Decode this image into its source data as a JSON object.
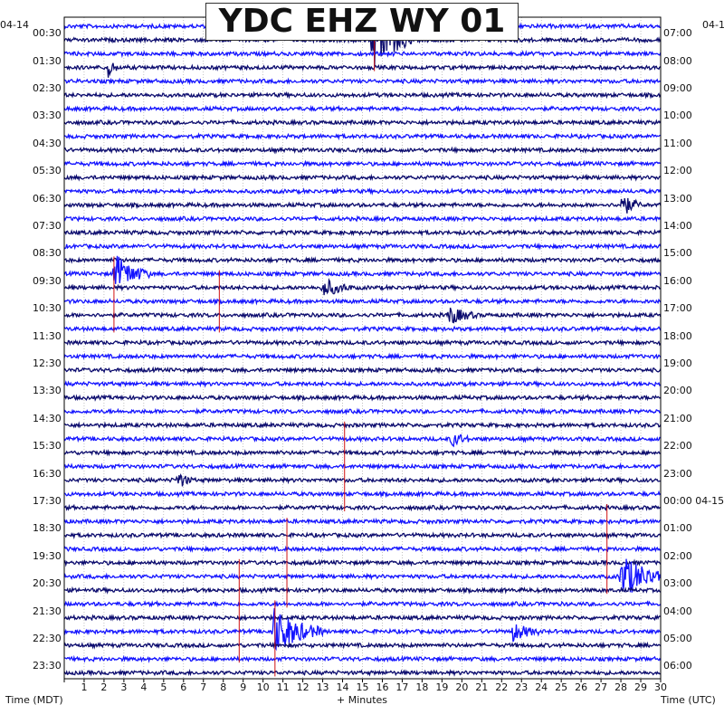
{
  "title": "YDC EHZ WY 01",
  "left_date": "04-14",
  "right_date": "04-1",
  "chart_data": {
    "type": "helicorder",
    "title": "YDC EHZ WY 01",
    "xlabel": "+ Minutes",
    "left_axis_label": "Time (MDT)",
    "right_axis_label": "Time (UTC)",
    "xlim": [
      0,
      30
    ],
    "x_ticks": [
      "1",
      "2",
      "3",
      "4",
      "5",
      "6",
      "7",
      "8",
      "9",
      "10",
      "11",
      "12",
      "13",
      "14",
      "15",
      "16",
      "17",
      "18",
      "19",
      "20",
      "21",
      "22",
      "23",
      "24",
      "25",
      "26",
      "27",
      "28",
      "29",
      "30"
    ],
    "left_time_labels": [
      "00:30",
      "01:30",
      "02:30",
      "03:30",
      "04:30",
      "05:30",
      "06:30",
      "07:30",
      "08:30",
      "09:30",
      "10:30",
      "11:30",
      "12:30",
      "13:30",
      "14:30",
      "15:30",
      "16:30",
      "17:30",
      "18:30",
      "19:30",
      "20:30",
      "21:30",
      "22:30",
      "23:30"
    ],
    "right_time_labels": [
      "07:00",
      "08:00",
      "09:00",
      "10:00",
      "11:00",
      "12:00",
      "13:00",
      "14:00",
      "15:00",
      "16:00",
      "17:00",
      "18:00",
      "19:00",
      "20:00",
      "21:00",
      "22:00",
      "23:00",
      "00:00 04-15",
      "01:00",
      "02:00",
      "03:00",
      "04:00",
      "05:00",
      "06:00"
    ],
    "trace_count": 48,
    "trace_colors": [
      "#1414ff",
      "#0c0c6e"
    ],
    "event_color": "#d01010",
    "events": [
      {
        "row": 1,
        "minute": 15.5,
        "amplitude": 4.5,
        "duration": 2.0
      },
      {
        "row": 3,
        "minute": 2.2,
        "amplitude": 1.4,
        "duration": 0.5
      },
      {
        "row": 13,
        "minute": 28.0,
        "amplitude": 1.6,
        "duration": 1.0
      },
      {
        "row": 18,
        "minute": 2.5,
        "amplitude": 2.5,
        "duration": 1.8
      },
      {
        "row": 19,
        "minute": 13.0,
        "amplitude": 1.2,
        "duration": 1.5
      },
      {
        "row": 21,
        "minute": 19.3,
        "amplitude": 1.2,
        "duration": 1.5
      },
      {
        "row": 30,
        "minute": 19.5,
        "amplitude": 0.9,
        "duration": 1.0
      },
      {
        "row": 33,
        "minute": 5.7,
        "amplitude": 1.1,
        "duration": 0.8
      },
      {
        "row": 40,
        "minute": 28.0,
        "amplitude": 2.8,
        "duration": 2.5
      },
      {
        "row": 44,
        "minute": 10.5,
        "amplitude": 3.0,
        "duration": 2.5
      },
      {
        "row": 44,
        "minute": 22.5,
        "amplitude": 1.2,
        "duration": 1.5
      }
    ],
    "red_marks": [
      {
        "minute": 15.6,
        "row_start": 0,
        "row_end": 3
      },
      {
        "minute": 2.5,
        "row_start": 17,
        "row_end": 22
      },
      {
        "minute": 7.8,
        "row_start": 18,
        "row_end": 22
      },
      {
        "minute": 14.1,
        "row_start": 29,
        "row_end": 35
      },
      {
        "minute": 27.3,
        "row_start": 35,
        "row_end": 41
      },
      {
        "minute": 11.2,
        "row_start": 36,
        "row_end": 42
      },
      {
        "minute": 8.8,
        "row_start": 39,
        "row_end": 46
      },
      {
        "minute": 10.6,
        "row_start": 42,
        "row_end": 47
      }
    ]
  }
}
